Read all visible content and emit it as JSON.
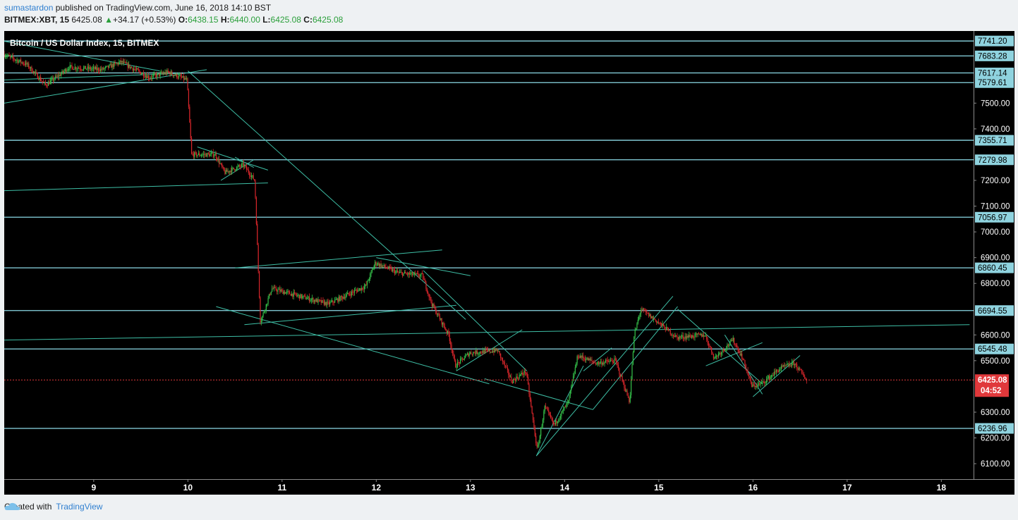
{
  "header": {
    "author": "sumastardon",
    "published_text": "published on TradingView.com, June 16, 2018 14:10 BST",
    "symbol": "BITMEX:XBT, 15",
    "last": "6425.08",
    "change_arrow": "▲",
    "change": "+34.17 (+0.53%)",
    "o_label": "O:",
    "o": "6438.15",
    "h_label": "H:",
    "h": "6440.00",
    "l_label": "L:",
    "l": "6425.08",
    "c_label": "C:",
    "c": "6425.08"
  },
  "footer": {
    "created_with": "Created with",
    "brand": "TradingView"
  },
  "colors": {
    "background": "#000000",
    "up": "#35c24a",
    "down": "#d9262b",
    "trendline": "#3ebfa6",
    "level_line": "#8cd9e6",
    "price_line": "#e0383b",
    "label_bg": "#8fd3df"
  },
  "chart_data": {
    "type": "candlestick",
    "title": "Bitcoin / US Dollar Index, 15, BITMEX",
    "x_ticks": [
      "9",
      "10",
      "11",
      "12",
      "13",
      "14",
      "15",
      "16",
      "17",
      "18"
    ],
    "x_range_days": [
      8.05,
      18.35
    ],
    "ylim": [
      6040,
      7780
    ],
    "y_ticks": [
      "6100.00",
      "6200.00",
      "6300.00",
      "6500.00",
      "6600.00",
      "6800.00",
      "6900.00",
      "7000.00",
      "7100.00",
      "7200.00",
      "7400.00",
      "7500.00"
    ],
    "levels": [
      "7741.20",
      "7683.28",
      "7617.14",
      "7579.61",
      "7355.71",
      "7279.98",
      "7056.97",
      "6860.45",
      "6694.55",
      "6545.48",
      "6236.96"
    ],
    "current_price": "6425.08",
    "countdown": "04:52",
    "price_path": [
      [
        8.05,
        7690
      ],
      [
        8.3,
        7650
      ],
      [
        8.5,
        7570
      ],
      [
        8.65,
        7610
      ],
      [
        8.75,
        7640
      ],
      [
        9.1,
        7630
      ],
      [
        9.3,
        7660
      ],
      [
        9.6,
        7600
      ],
      [
        9.8,
        7620
      ],
      [
        10.0,
        7590
      ],
      [
        10.05,
        7300
      ],
      [
        10.3,
        7300
      ],
      [
        10.4,
        7230
      ],
      [
        10.6,
        7260
      ],
      [
        10.72,
        7200
      ],
      [
        10.78,
        6650
      ],
      [
        10.9,
        6780
      ],
      [
        11.5,
        6720
      ],
      [
        11.9,
        6790
      ],
      [
        12.0,
        6880
      ],
      [
        12.25,
        6840
      ],
      [
        12.5,
        6830
      ],
      [
        12.6,
        6720
      ],
      [
        12.78,
        6600
      ],
      [
        12.85,
        6480
      ],
      [
        13.0,
        6530
      ],
      [
        13.3,
        6540
      ],
      [
        13.45,
        6420
      ],
      [
        13.6,
        6460
      ],
      [
        13.72,
        6150
      ],
      [
        13.8,
        6320
      ],
      [
        13.9,
        6250
      ],
      [
        14.05,
        6340
      ],
      [
        14.15,
        6520
      ],
      [
        14.35,
        6490
      ],
      [
        14.55,
        6500
      ],
      [
        14.7,
        6340
      ],
      [
        14.75,
        6600
      ],
      [
        14.82,
        6700
      ],
      [
        15.0,
        6650
      ],
      [
        15.2,
        6590
      ],
      [
        15.5,
        6600
      ],
      [
        15.6,
        6510
      ],
      [
        15.8,
        6580
      ],
      [
        15.9,
        6510
      ],
      [
        16.0,
        6400
      ],
      [
        16.1,
        6410
      ],
      [
        16.3,
        6470
      ],
      [
        16.45,
        6490
      ],
      [
        16.58,
        6425.08
      ]
    ],
    "trendlines": [
      [
        [
          8.05,
          7740
        ],
        [
          9.7,
          7625
        ]
      ],
      [
        [
          8.05,
          7500
        ],
        [
          10.2,
          7630
        ]
      ],
      [
        [
          8.05,
          7590
        ],
        [
          9.9,
          7615
        ]
      ],
      [
        [
          10.0,
          7625
        ],
        [
          12.95,
          6660
        ]
      ],
      [
        [
          10.1,
          7330
        ],
        [
          10.85,
          7240
        ]
      ],
      [
        [
          8.05,
          7160
        ],
        [
          10.85,
          7190
        ]
      ],
      [
        [
          10.35,
          7200
        ],
        [
          10.7,
          7280
        ]
      ],
      [
        [
          10.5,
          7290
        ],
        [
          10.7,
          7250
        ]
      ],
      [
        [
          10.5,
          6860
        ],
        [
          12.7,
          6930
        ]
      ],
      [
        [
          10.6,
          6640
        ],
        [
          12.85,
          6715
        ]
      ],
      [
        [
          12.0,
          6900
        ],
        [
          13.0,
          6830
        ]
      ],
      [
        [
          10.3,
          6710
        ],
        [
          13.2,
          6410
        ]
      ],
      [
        [
          12.5,
          6850
        ],
        [
          13.6,
          6460
        ]
      ],
      [
        [
          12.85,
          6460
        ],
        [
          13.55,
          6620
        ]
      ],
      [
        [
          13.15,
          6430
        ],
        [
          14.3,
          6310
        ]
      ],
      [
        [
          13.7,
          6130
        ],
        [
          14.2,
          6480
        ]
      ],
      [
        [
          13.7,
          6130
        ],
        [
          15.15,
          6750
        ]
      ],
      [
        [
          14.3,
          6310
        ],
        [
          15.2,
          6710
        ]
      ],
      [
        [
          14.2,
          6460
        ],
        [
          14.5,
          6550
        ]
      ],
      [
        [
          8.05,
          6580
        ],
        [
          18.3,
          6640
        ]
      ],
      [
        [
          15.2,
          6700
        ],
        [
          16.1,
          6410
        ]
      ],
      [
        [
          15.5,
          6480
        ],
        [
          16.1,
          6570
        ]
      ],
      [
        [
          15.7,
          6600
        ],
        [
          16.1,
          6370
        ]
      ],
      [
        [
          16.0,
          6360
        ],
        [
          16.5,
          6520
        ]
      ]
    ]
  }
}
